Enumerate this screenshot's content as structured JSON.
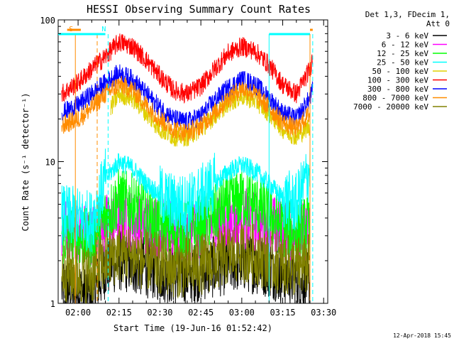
{
  "chart_data": {
    "type": "line",
    "title": "HESSI Observing Summary Count Rates",
    "xlabel": "Start Time (19-Jun-16 01:52:42)",
    "ylabel": "Count Rate (s⁻¹ detector⁻¹)",
    "x_scale": "time",
    "y_scale": "log",
    "xlim": [
      "01:52:42",
      "03:31:30"
    ],
    "ylim": [
      1,
      100
    ],
    "x_ticks": [
      "02:00",
      "02:15",
      "02:30",
      "02:45",
      "03:00",
      "03:15",
      "03:30"
    ],
    "y_ticks": [
      "1",
      "10",
      "100"
    ],
    "legend_title": [
      "Det 1,3, FDecim 1,",
      "Att 0"
    ],
    "legend_position": "right",
    "series": [
      {
        "name": "3 - 6 keV",
        "color": "#000000",
        "x": [
          "01:54",
          "02:00",
          "02:05",
          "02:10",
          "02:15",
          "02:20",
          "02:25",
          "02:30",
          "02:35",
          "02:40",
          "02:45",
          "02:50",
          "02:55",
          "03:00",
          "03:05",
          "03:10",
          "03:15",
          "03:20",
          "03:25"
        ],
        "y": [
          1.3,
          1.2,
          1.1,
          1.8,
          2.0,
          1.9,
          1.8,
          1.7,
          1.6,
          1.6,
          1.7,
          1.8,
          1.9,
          2.0,
          1.9,
          1.8,
          1.6,
          1.5,
          1.4
        ]
      },
      {
        "name": "6 - 12 keV",
        "color": "#ff00ff",
        "x": [
          "01:54",
          "02:00",
          "02:05",
          "02:10",
          "02:15",
          "02:20",
          "02:25",
          "02:30",
          "02:35",
          "02:40",
          "02:45",
          "02:50",
          "02:55",
          "03:00",
          "03:05",
          "03:10",
          "03:15",
          "03:20",
          "03:25"
        ],
        "y": [
          3.3,
          3.2,
          3.1,
          3.6,
          3.9,
          3.8,
          3.6,
          3.4,
          3.2,
          3.2,
          3.4,
          3.6,
          3.8,
          4.0,
          3.8,
          3.6,
          3.3,
          3.2,
          3.3
        ]
      },
      {
        "name": "12 - 25 keV",
        "color": "#00ff00",
        "x": [
          "01:54",
          "02:00",
          "02:05",
          "02:10",
          "02:15",
          "02:20",
          "02:25",
          "02:30",
          "02:35",
          "02:40",
          "02:45",
          "02:50",
          "02:55",
          "03:00",
          "03:05",
          "03:10",
          "03:15",
          "03:20",
          "03:25"
        ],
        "y": [
          3.0,
          2.9,
          2.8,
          4.0,
          5.5,
          5.0,
          4.2,
          3.6,
          3.2,
          3.2,
          3.6,
          4.2,
          5.0,
          5.5,
          5.0,
          4.2,
          3.5,
          3.2,
          3.6
        ]
      },
      {
        "name": "25 - 50 keV",
        "color": "#00ffff",
        "x": [
          "01:54",
          "02:00",
          "02:05",
          "02:10",
          "02:15",
          "02:20",
          "02:25",
          "02:30",
          "02:35",
          "02:40",
          "02:45",
          "02:50",
          "02:55",
          "03:00",
          "03:05",
          "03:10",
          "03:15",
          "03:20",
          "03:25"
        ],
        "y": [
          4.2,
          4.0,
          3.8,
          7.5,
          10.0,
          9.0,
          7.0,
          5.8,
          5.0,
          5.0,
          5.8,
          7.0,
          8.5,
          9.5,
          8.5,
          7.0,
          5.5,
          5.0,
          9.0
        ]
      },
      {
        "name": "50 - 100 keV",
        "color": "#e0d000",
        "x": [
          "02:12",
          "02:15",
          "02:20",
          "02:25",
          "02:30",
          "02:35",
          "02:40",
          "02:45",
          "02:50",
          "02:55",
          "03:00",
          "03:05",
          "03:10",
          "03:15",
          "03:20",
          "03:25"
        ],
        "y": [
          24,
          30,
          28,
          22,
          17,
          15,
          15,
          17,
          21,
          26,
          29,
          27,
          22,
          17,
          15,
          18
        ]
      },
      {
        "name": "100 - 300 keV",
        "color": "#ff0000",
        "x": [
          "01:54",
          "02:00",
          "02:05",
          "02:10",
          "02:15",
          "02:20",
          "02:25",
          "02:30",
          "02:35",
          "02:40",
          "02:45",
          "02:50",
          "02:55",
          "03:00",
          "03:05",
          "03:10",
          "03:15",
          "03:20",
          "03:25",
          "03:26"
        ],
        "y": [
          30,
          36,
          45,
          55,
          70,
          65,
          52,
          40,
          32,
          30,
          34,
          45,
          58,
          65,
          60,
          48,
          35,
          30,
          45,
          55
        ]
      },
      {
        "name": "300 - 800 keV",
        "color": "#0000ff",
        "x": [
          "01:54",
          "02:00",
          "02:05",
          "02:10",
          "02:15",
          "02:20",
          "02:25",
          "02:30",
          "02:35",
          "02:40",
          "02:45",
          "02:50",
          "02:55",
          "03:00",
          "03:05",
          "03:10",
          "03:15",
          "03:20",
          "03:25",
          "03:26"
        ],
        "y": [
          22,
          25,
          30,
          36,
          42,
          38,
          30,
          24,
          20,
          19,
          21,
          27,
          33,
          38,
          35,
          28,
          22,
          20,
          28,
          32
        ]
      },
      {
        "name": "800 - 7000 keV",
        "color": "#ff8c00",
        "x": [
          "01:54",
          "02:00",
          "02:05",
          "02:10",
          "02:15",
          "02:20",
          "02:25",
          "02:30",
          "02:35",
          "02:40",
          "02:45",
          "02:50",
          "02:55",
          "03:00",
          "03:05",
          "03:10",
          "03:15",
          "03:20",
          "03:25"
        ],
        "y": [
          18,
          20,
          24,
          30,
          35,
          32,
          25,
          20,
          17,
          16,
          18,
          22,
          28,
          33,
          30,
          24,
          19,
          17,
          22
        ]
      },
      {
        "name": "7000 - 20000 keV",
        "color": "#808000",
        "x": [
          "01:54",
          "02:00",
          "02:05",
          "02:10",
          "02:15",
          "02:20",
          "02:25",
          "02:30",
          "02:35",
          "02:40",
          "02:45",
          "02:50",
          "02:55",
          "03:00",
          "03:05",
          "03:10",
          "03:15",
          "03:20",
          "03:25"
        ],
        "y": [
          1.7,
          1.6,
          1.6,
          2.0,
          2.3,
          2.2,
          2.0,
          1.9,
          1.8,
          1.8,
          1.9,
          2.0,
          2.2,
          2.3,
          2.2,
          2.0,
          1.9,
          1.8,
          1.9
        ]
      }
    ],
    "markers": [
      {
        "label": "S",
        "color": "#ff8c00",
        "style": "solid",
        "time": "01:59",
        "bar_start": "01:56",
        "bar_end": "02:01"
      },
      {
        "label": "",
        "color": "#ff8c00",
        "style": "dashed",
        "time": "02:07"
      },
      {
        "label": "N",
        "color": "#00ffff",
        "style": "dashed",
        "time": "02:11",
        "bar_start": "01:52:42",
        "bar_end": "02:10"
      },
      {
        "label": "",
        "color": "#00ffff",
        "style": "solid",
        "time": "03:10",
        "bar_start": "03:10",
        "bar_end": "03:25"
      },
      {
        "label": "",
        "color": "#ff8c00",
        "style": "solid",
        "time": "03:25",
        "bar_start": "03:25",
        "bar_end": "03:26"
      },
      {
        "label": "",
        "color": "#00ffff",
        "style": "dashed",
        "time": "03:26"
      }
    ],
    "grid": false
  },
  "footer": {
    "date_stamp": "12-Apr-2018 15:45"
  }
}
